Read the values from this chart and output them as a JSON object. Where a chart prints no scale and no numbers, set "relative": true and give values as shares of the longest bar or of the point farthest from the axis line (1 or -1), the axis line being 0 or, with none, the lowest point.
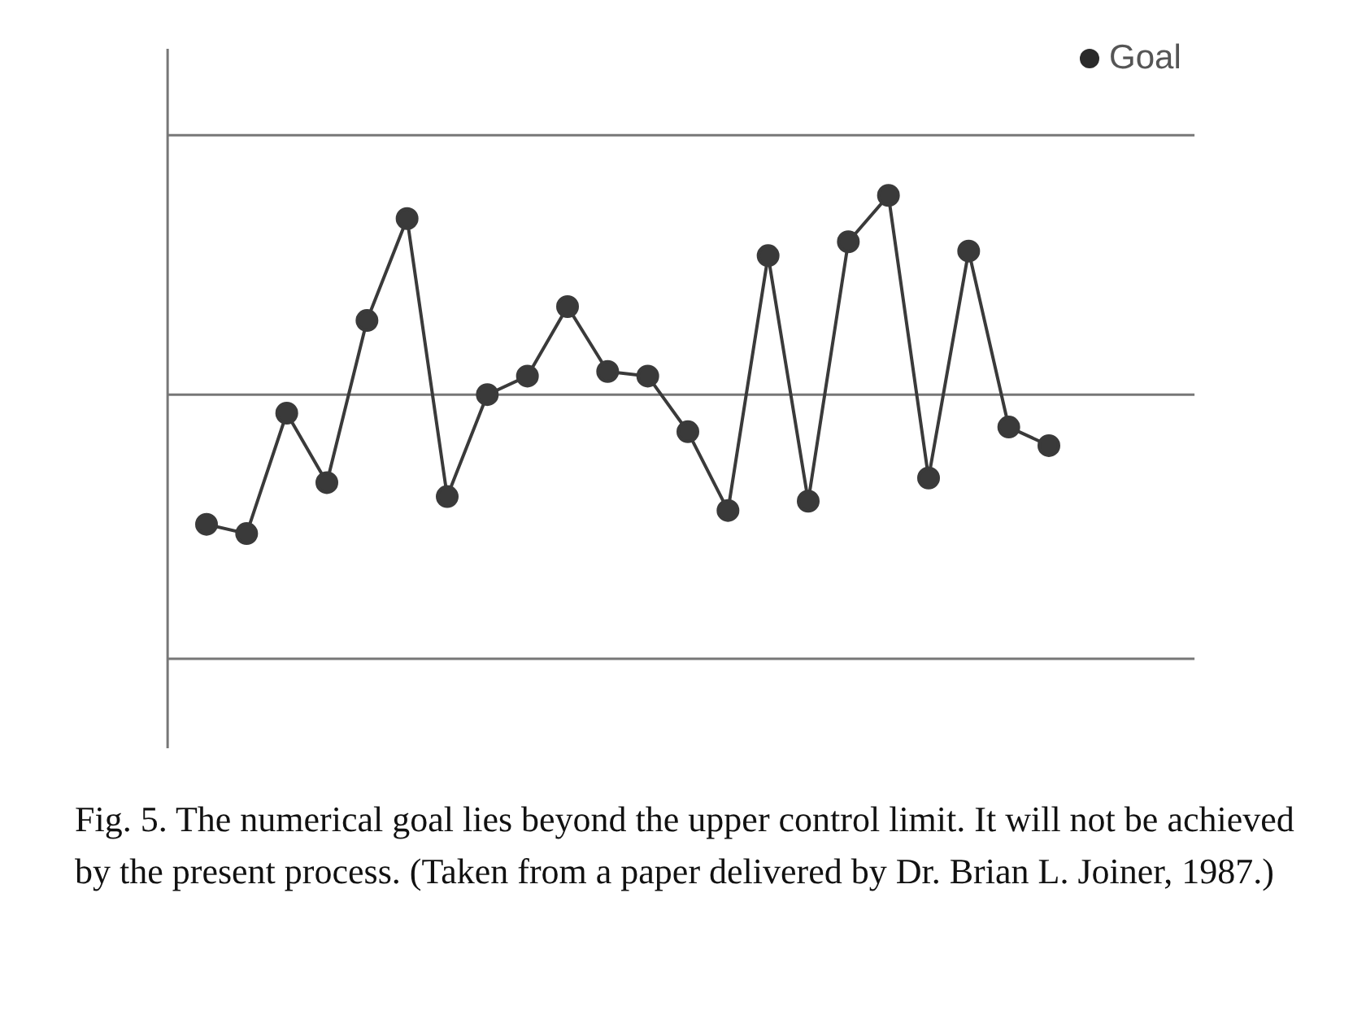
{
  "chart_data": {
    "type": "line",
    "relative": true,
    "categories": [
      null,
      null,
      null,
      null,
      null,
      null,
      null,
      null,
      null,
      null,
      null,
      null,
      null,
      null,
      null,
      null,
      null,
      null,
      null,
      null,
      null,
      null
    ],
    "series": [
      {
        "color": "#3a3a3a",
        "values": [
          0.29,
          0.27,
          0.53,
          0.38,
          0.73,
          0.95,
          0.35,
          0.57,
          0.61,
          0.76,
          0.62,
          0.61,
          0.49,
          0.32,
          0.87,
          0.34,
          0.9,
          1,
          0.39,
          0.88,
          0.5,
          0.46
        ]
      }
    ],
    "ref_lines": [
      {
        "axis": "y",
        "value": 1.13,
        "color": "#777777"
      },
      {
        "axis": "y",
        "value": 0.57,
        "color": "#777777"
      },
      {
        "axis": "y",
        "value": 0,
        "color": "#777777"
      }
    ],
    "marker": "circle",
    "annotations": [
      "Goal",
      "Fig. 5. The numerical goal lies beyond the upper control limit. It will not be achieved by the present process. (Taken from a paper delivered by Dr. Brian L. Joiner, 1987.)"
    ]
  }
}
